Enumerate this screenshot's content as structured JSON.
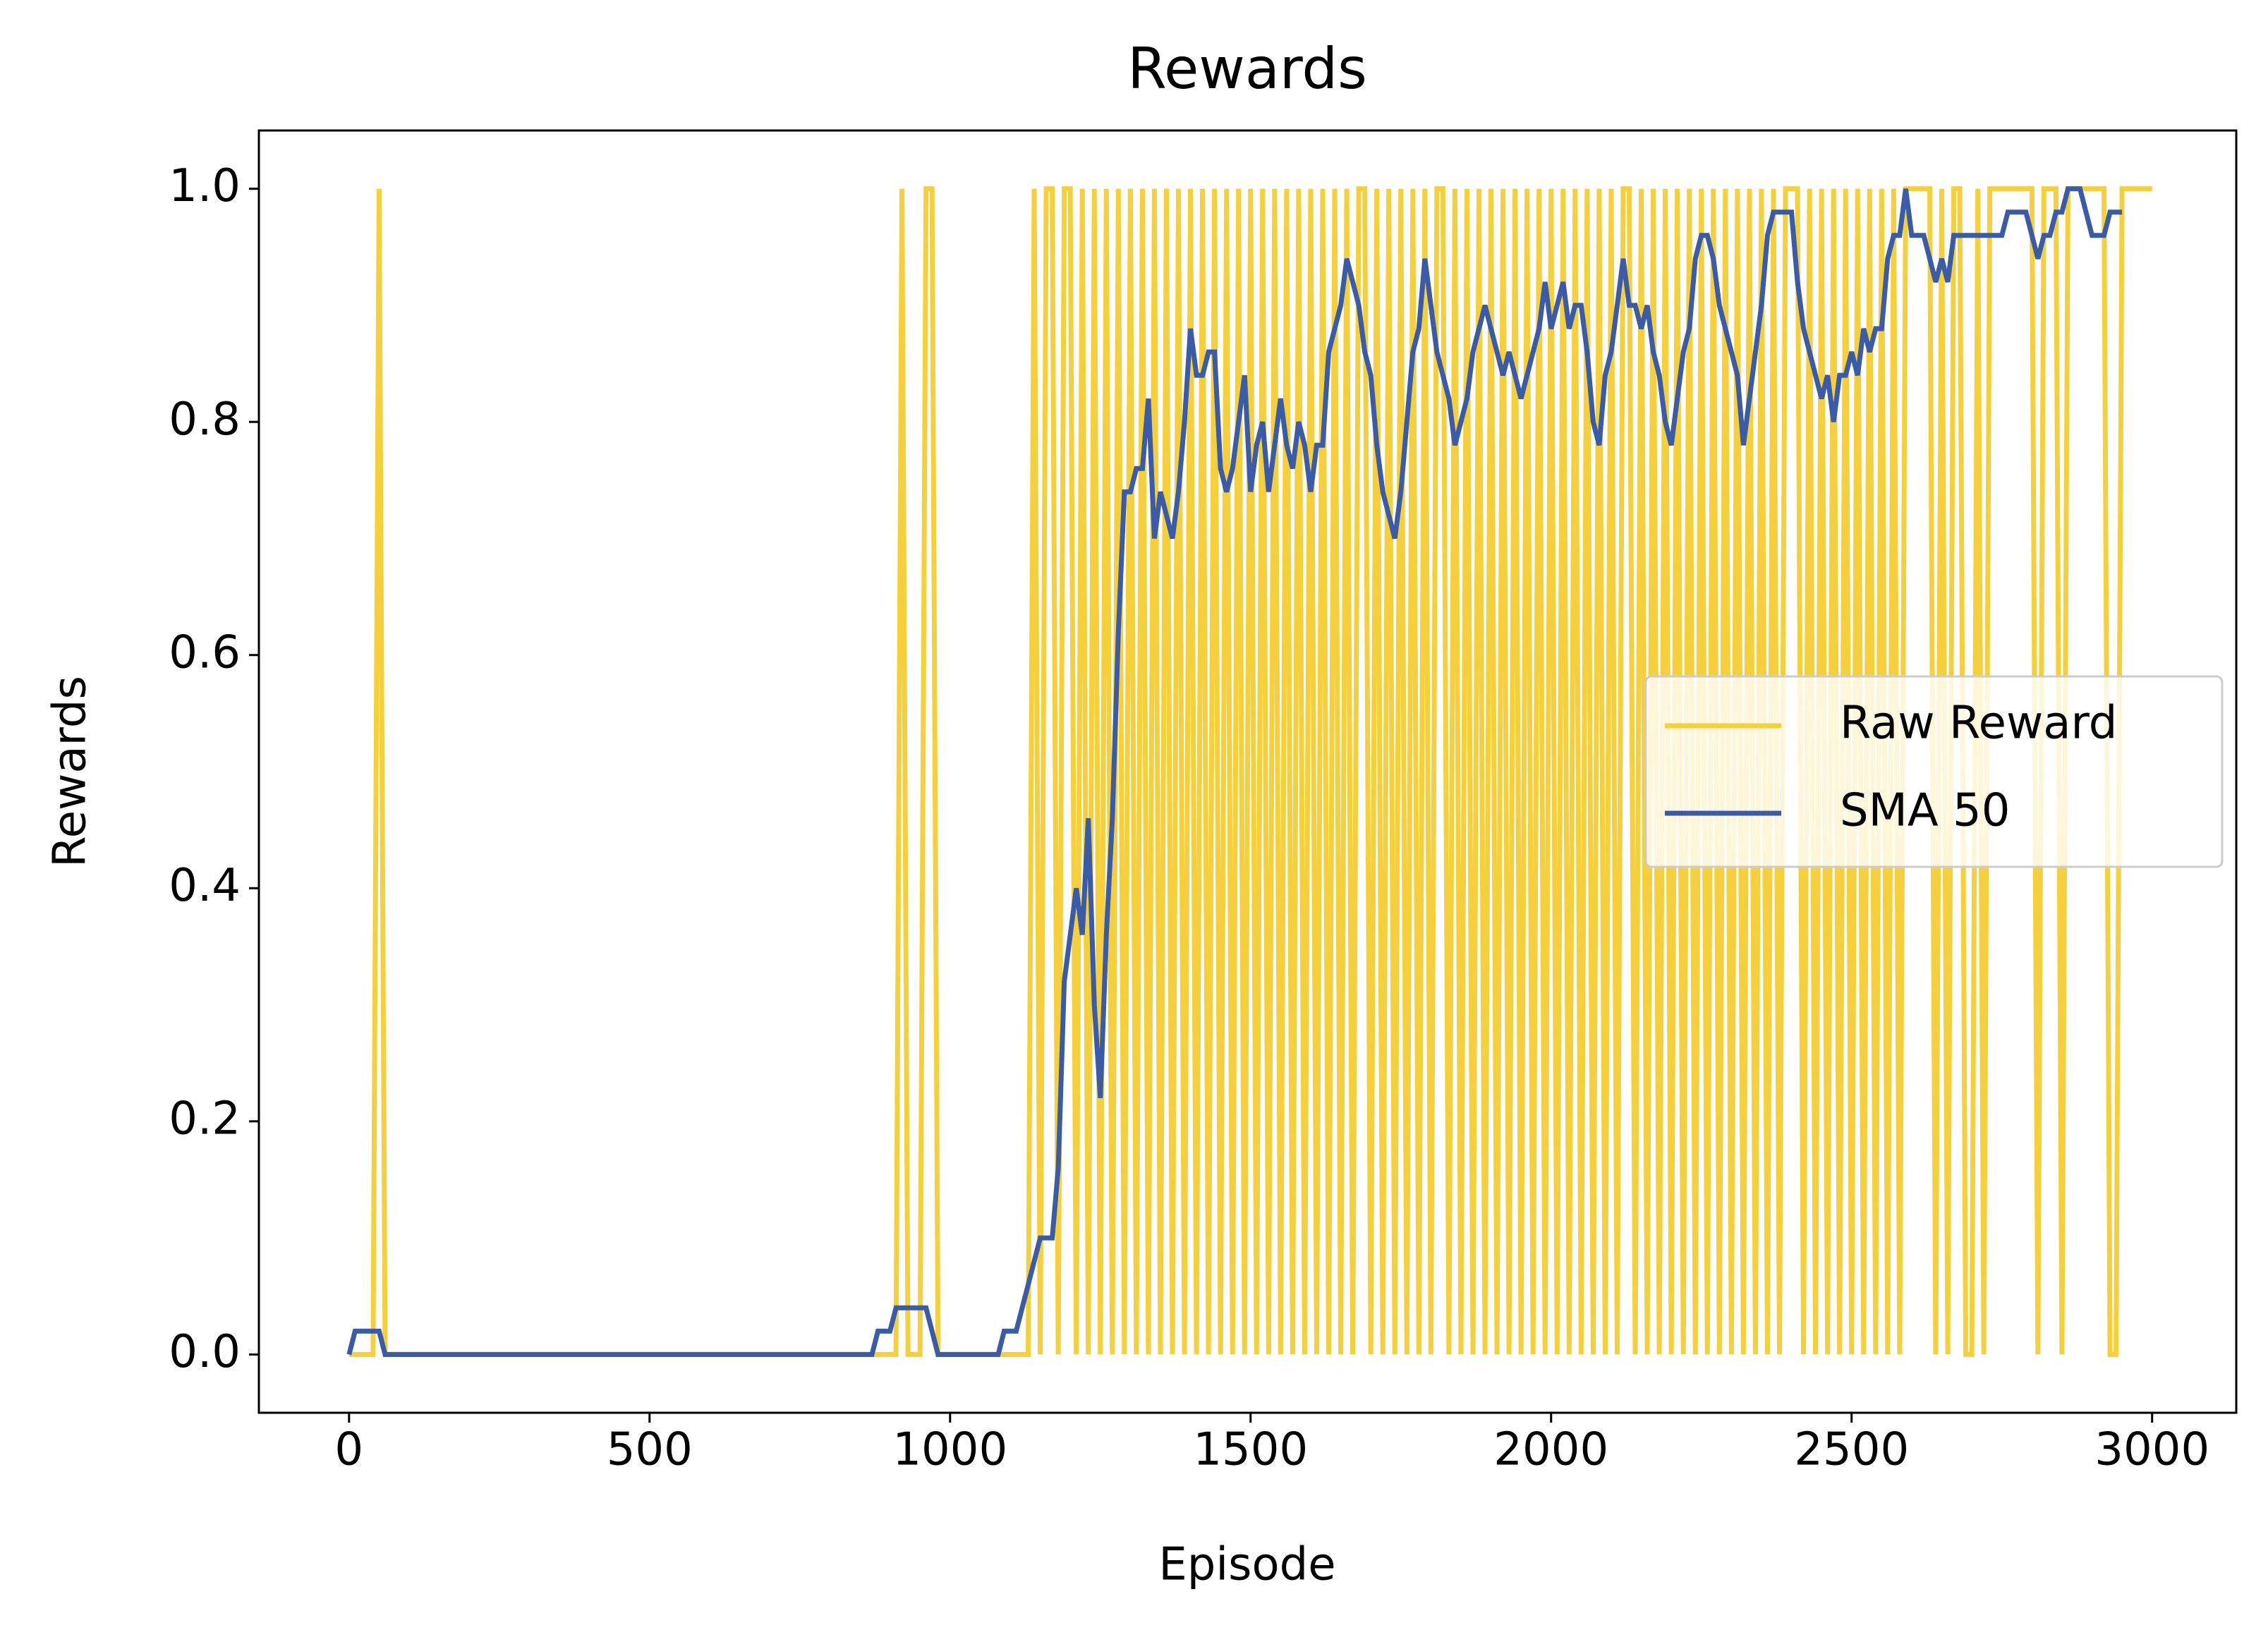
{
  "chart_data": {
    "type": "line",
    "title": "Rewards",
    "x_label": "Episode",
    "y_label": "Rewards",
    "x": [
      0,
      10,
      20,
      30,
      40,
      50,
      60,
      70,
      80,
      90,
      100,
      110,
      120,
      130,
      140,
      150,
      160,
      170,
      180,
      190,
      200,
      210,
      220,
      230,
      240,
      250,
      260,
      270,
      280,
      290,
      300,
      310,
      320,
      330,
      340,
      350,
      360,
      370,
      380,
      390,
      400,
      410,
      420,
      430,
      440,
      450,
      460,
      470,
      480,
      490,
      500,
      510,
      520,
      530,
      540,
      550,
      560,
      570,
      580,
      590,
      600,
      610,
      620,
      630,
      640,
      650,
      660,
      670,
      680,
      690,
      700,
      710,
      720,
      730,
      740,
      750,
      760,
      770,
      780,
      790,
      800,
      810,
      820,
      830,
      840,
      850,
      860,
      870,
      880,
      890,
      900,
      910,
      920,
      930,
      940,
      950,
      960,
      970,
      980,
      990,
      1000,
      1010,
      1020,
      1030,
      1040,
      1050,
      1060,
      1070,
      1080,
      1090,
      1100,
      1110,
      1120,
      1130,
      1140,
      1150,
      1160,
      1170,
      1180,
      1190,
      1200,
      1210,
      1220,
      1230,
      1240,
      1250,
      1260,
      1270,
      1280,
      1290,
      1300,
      1310,
      1320,
      1330,
      1340,
      1350,
      1360,
      1370,
      1380,
      1390,
      1400,
      1410,
      1420,
      1430,
      1440,
      1450,
      1460,
      1470,
      1480,
      1490,
      1500,
      1510,
      1520,
      1530,
      1540,
      1550,
      1560,
      1570,
      1580,
      1590,
      1600,
      1610,
      1620,
      1630,
      1640,
      1650,
      1660,
      1670,
      1680,
      1690,
      1700,
      1710,
      1720,
      1730,
      1740,
      1750,
      1760,
      1770,
      1780,
      1790,
      1800,
      1810,
      1820,
      1830,
      1840,
      1850,
      1860,
      1870,
      1880,
      1890,
      1900,
      1910,
      1920,
      1930,
      1940,
      1950,
      1960,
      1970,
      1980,
      1990,
      2000,
      2010,
      2020,
      2030,
      2040,
      2050,
      2060,
      2070,
      2080,
      2090,
      2100,
      2110,
      2120,
      2130,
      2140,
      2150,
      2160,
      2170,
      2180,
      2190,
      2200,
      2210,
      2220,
      2230,
      2240,
      2250,
      2260,
      2270,
      2280,
      2290,
      2300,
      2310,
      2320,
      2330,
      2340,
      2350,
      2360,
      2370,
      2380,
      2390,
      2400,
      2410,
      2420,
      2430,
      2440,
      2450,
      2460,
      2470,
      2480,
      2490,
      2500,
      2510,
      2520,
      2530,
      2540,
      2550,
      2560,
      2570,
      2580,
      2590,
      2600,
      2610,
      2620,
      2630,
      2640,
      2650,
      2660,
      2670,
      2680,
      2690,
      2700,
      2710,
      2720,
      2730,
      2740,
      2750,
      2760,
      2770,
      2780,
      2790,
      2800,
      2810,
      2820,
      2830,
      2840,
      2850,
      2860,
      2870,
      2880,
      2890,
      2900,
      2910,
      2920,
      2930,
      2940,
      2950,
      2960,
      2970,
      2980,
      2990,
      3000
    ],
    "series": [
      {
        "name": "Raw Reward",
        "color": "#f5cf3c",
        "values": [
          0,
          0,
          0,
          0,
          0,
          1,
          0,
          0,
          0,
          0,
          0,
          0,
          0,
          0,
          0,
          0,
          0,
          0,
          0,
          0,
          0,
          0,
          0,
          0,
          0,
          0,
          0,
          0,
          0,
          0,
          0,
          0,
          0,
          0,
          0,
          0,
          0,
          0,
          0,
          0,
          0,
          0,
          0,
          0,
          0,
          0,
          0,
          0,
          0,
          0,
          0,
          0,
          0,
          0,
          0,
          0,
          0,
          0,
          0,
          0,
          0,
          0,
          0,
          0,
          0,
          0,
          0,
          0,
          0,
          0,
          0,
          0,
          0,
          0,
          0,
          0,
          0,
          0,
          0,
          0,
          0,
          0,
          0,
          0,
          0,
          0,
          0,
          0,
          0,
          0,
          0,
          0,
          1,
          0,
          0,
          0,
          1,
          1,
          0,
          0,
          0,
          0,
          0,
          0,
          0,
          0,
          0,
          0,
          0,
          0,
          0,
          0,
          0,
          0,
          1,
          0,
          1,
          1,
          0,
          1,
          1,
          0,
          1,
          0,
          1,
          0,
          1,
          0,
          1,
          0,
          1,
          0,
          1,
          0,
          1,
          0,
          1,
          0,
          1,
          0,
          1,
          0,
          1,
          0,
          1,
          0,
          1,
          0,
          1,
          0,
          1,
          0,
          1,
          0,
          1,
          0,
          1,
          0,
          1,
          0,
          1,
          0,
          1,
          0,
          1,
          0,
          1,
          0,
          1,
          1,
          0,
          1,
          0,
          1,
          0,
          1,
          0,
          1,
          0,
          1,
          0,
          1,
          1,
          0,
          1,
          0,
          1,
          0,
          1,
          0,
          1,
          0,
          1,
          0,
          1,
          0,
          1,
          0,
          1,
          0,
          1,
          0,
          1,
          0,
          1,
          0,
          1,
          0,
          1,
          0,
          1,
          0,
          1,
          1,
          0,
          1,
          0,
          1,
          0,
          1,
          0,
          1,
          0,
          1,
          0,
          1,
          0,
          1,
          0,
          1,
          0,
          1,
          0,
          1,
          0,
          1,
          0,
          1,
          0,
          1,
          1,
          1,
          0,
          1,
          0,
          1,
          0,
          1,
          0,
          1,
          0,
          1,
          0,
          1,
          0,
          1,
          0,
          1,
          0,
          1,
          1,
          1,
          1,
          1,
          0,
          1,
          0,
          1,
          1,
          0,
          0,
          1,
          0,
          1,
          1,
          1,
          1,
          1,
          1,
          1,
          1,
          0,
          1,
          1,
          1,
          0,
          1,
          1,
          1,
          1,
          1,
          1,
          1,
          0,
          0,
          1,
          1,
          1,
          1,
          1,
          1
        ]
      },
      {
        "name": "SMA 50",
        "color": "#3a5ca8",
        "values": [
          0,
          0.02,
          0.02,
          0.02,
          0.02,
          0.02,
          0,
          0,
          0,
          0,
          0,
          0,
          0,
          0,
          0,
          0,
          0,
          0,
          0,
          0,
          0,
          0,
          0,
          0,
          0,
          0,
          0,
          0,
          0,
          0,
          0,
          0,
          0,
          0,
          0,
          0,
          0,
          0,
          0,
          0,
          0,
          0,
          0,
          0,
          0,
          0,
          0,
          0,
          0,
          0,
          0,
          0,
          0,
          0,
          0,
          0,
          0,
          0,
          0,
          0,
          0,
          0,
          0,
          0,
          0,
          0,
          0,
          0,
          0,
          0,
          0,
          0,
          0,
          0,
          0,
          0,
          0,
          0,
          0,
          0,
          0,
          0,
          0,
          0,
          0,
          0,
          0,
          0,
          0.02,
          0.02,
          0.02,
          0.04,
          0.04,
          0.04,
          0.04,
          0.04,
          0.04,
          0.02,
          0,
          0,
          0,
          0,
          0,
          0,
          0,
          0,
          0,
          0,
          0,
          0.02,
          0.02,
          0.02,
          0.04,
          0.06,
          0.08,
          0.1,
          0.1,
          0.1,
          0.16,
          0.32,
          0.36,
          0.4,
          0.36,
          0.46,
          0.3,
          0.22,
          0.36,
          0.46,
          0.62,
          0.74,
          0.74,
          0.76,
          0.76,
          0.82,
          0.7,
          0.74,
          0.72,
          0.7,
          0.74,
          0.8,
          0.88,
          0.84,
          0.84,
          0.86,
          0.86,
          0.76,
          0.74,
          0.76,
          0.8,
          0.84,
          0.74,
          0.78,
          0.8,
          0.74,
          0.78,
          0.82,
          0.78,
          0.76,
          0.8,
          0.78,
          0.74,
          0.78,
          0.78,
          0.86,
          0.88,
          0.9,
          0.94,
          0.92,
          0.9,
          0.86,
          0.84,
          0.78,
          0.74,
          0.72,
          0.7,
          0.74,
          0.8,
          0.86,
          0.88,
          0.94,
          0.9,
          0.86,
          0.84,
          0.82,
          0.78,
          0.8,
          0.82,
          0.86,
          0.88,
          0.9,
          0.88,
          0.86,
          0.84,
          0.86,
          0.84,
          0.82,
          0.84,
          0.86,
          0.88,
          0.92,
          0.88,
          0.9,
          0.92,
          0.88,
          0.9,
          0.9,
          0.86,
          0.8,
          0.78,
          0.84,
          0.86,
          0.9,
          0.94,
          0.9,
          0.9,
          0.88,
          0.9,
          0.86,
          0.84,
          0.8,
          0.78,
          0.82,
          0.86,
          0.88,
          0.94,
          0.96,
          0.96,
          0.94,
          0.9,
          0.88,
          0.86,
          0.84,
          0.78,
          0.82,
          0.86,
          0.9,
          0.96,
          0.98,
          0.98,
          0.98,
          0.98,
          0.92,
          0.88,
          0.86,
          0.84,
          0.82,
          0.84,
          0.8,
          0.84,
          0.84,
          0.86,
          0.84,
          0.88,
          0.86,
          0.88,
          0.88,
          0.94,
          0.96,
          0.96,
          1.0,
          0.96,
          0.96,
          0.96,
          0.94,
          0.92,
          0.94,
          0.92,
          0.96,
          0.96,
          0.96,
          0.96,
          0.96,
          0.96,
          0.96,
          0.96,
          0.96,
          0.98,
          0.98,
          0.98,
          0.98,
          0.96,
          0.94,
          0.96,
          0.96,
          0.98,
          0.98,
          1.0,
          1.0,
          1.0,
          0.98,
          0.96,
          0.96,
          0.96,
          0.98,
          0.98,
          0.98,
          null,
          null,
          null,
          null,
          null
        ]
      }
    ],
    "xlim": [
      -150,
      3140
    ],
    "xticks": [
      0,
      500,
      1000,
      1500,
      2000,
      2500,
      3000
    ],
    "ylim": [
      -0.05,
      1.05
    ],
    "yticks": [
      {
        "value": 0,
        "label": "0.0"
      },
      {
        "value": 0.2,
        "label": "0.2"
      },
      {
        "value": 0.4,
        "label": "0.4"
      },
      {
        "value": 0.6,
        "label": "0.6"
      },
      {
        "value": 0.8,
        "label": "0.8"
      },
      {
        "value": 1,
        "label": "1.0"
      }
    ],
    "grid": false,
    "legend": "center right"
  }
}
